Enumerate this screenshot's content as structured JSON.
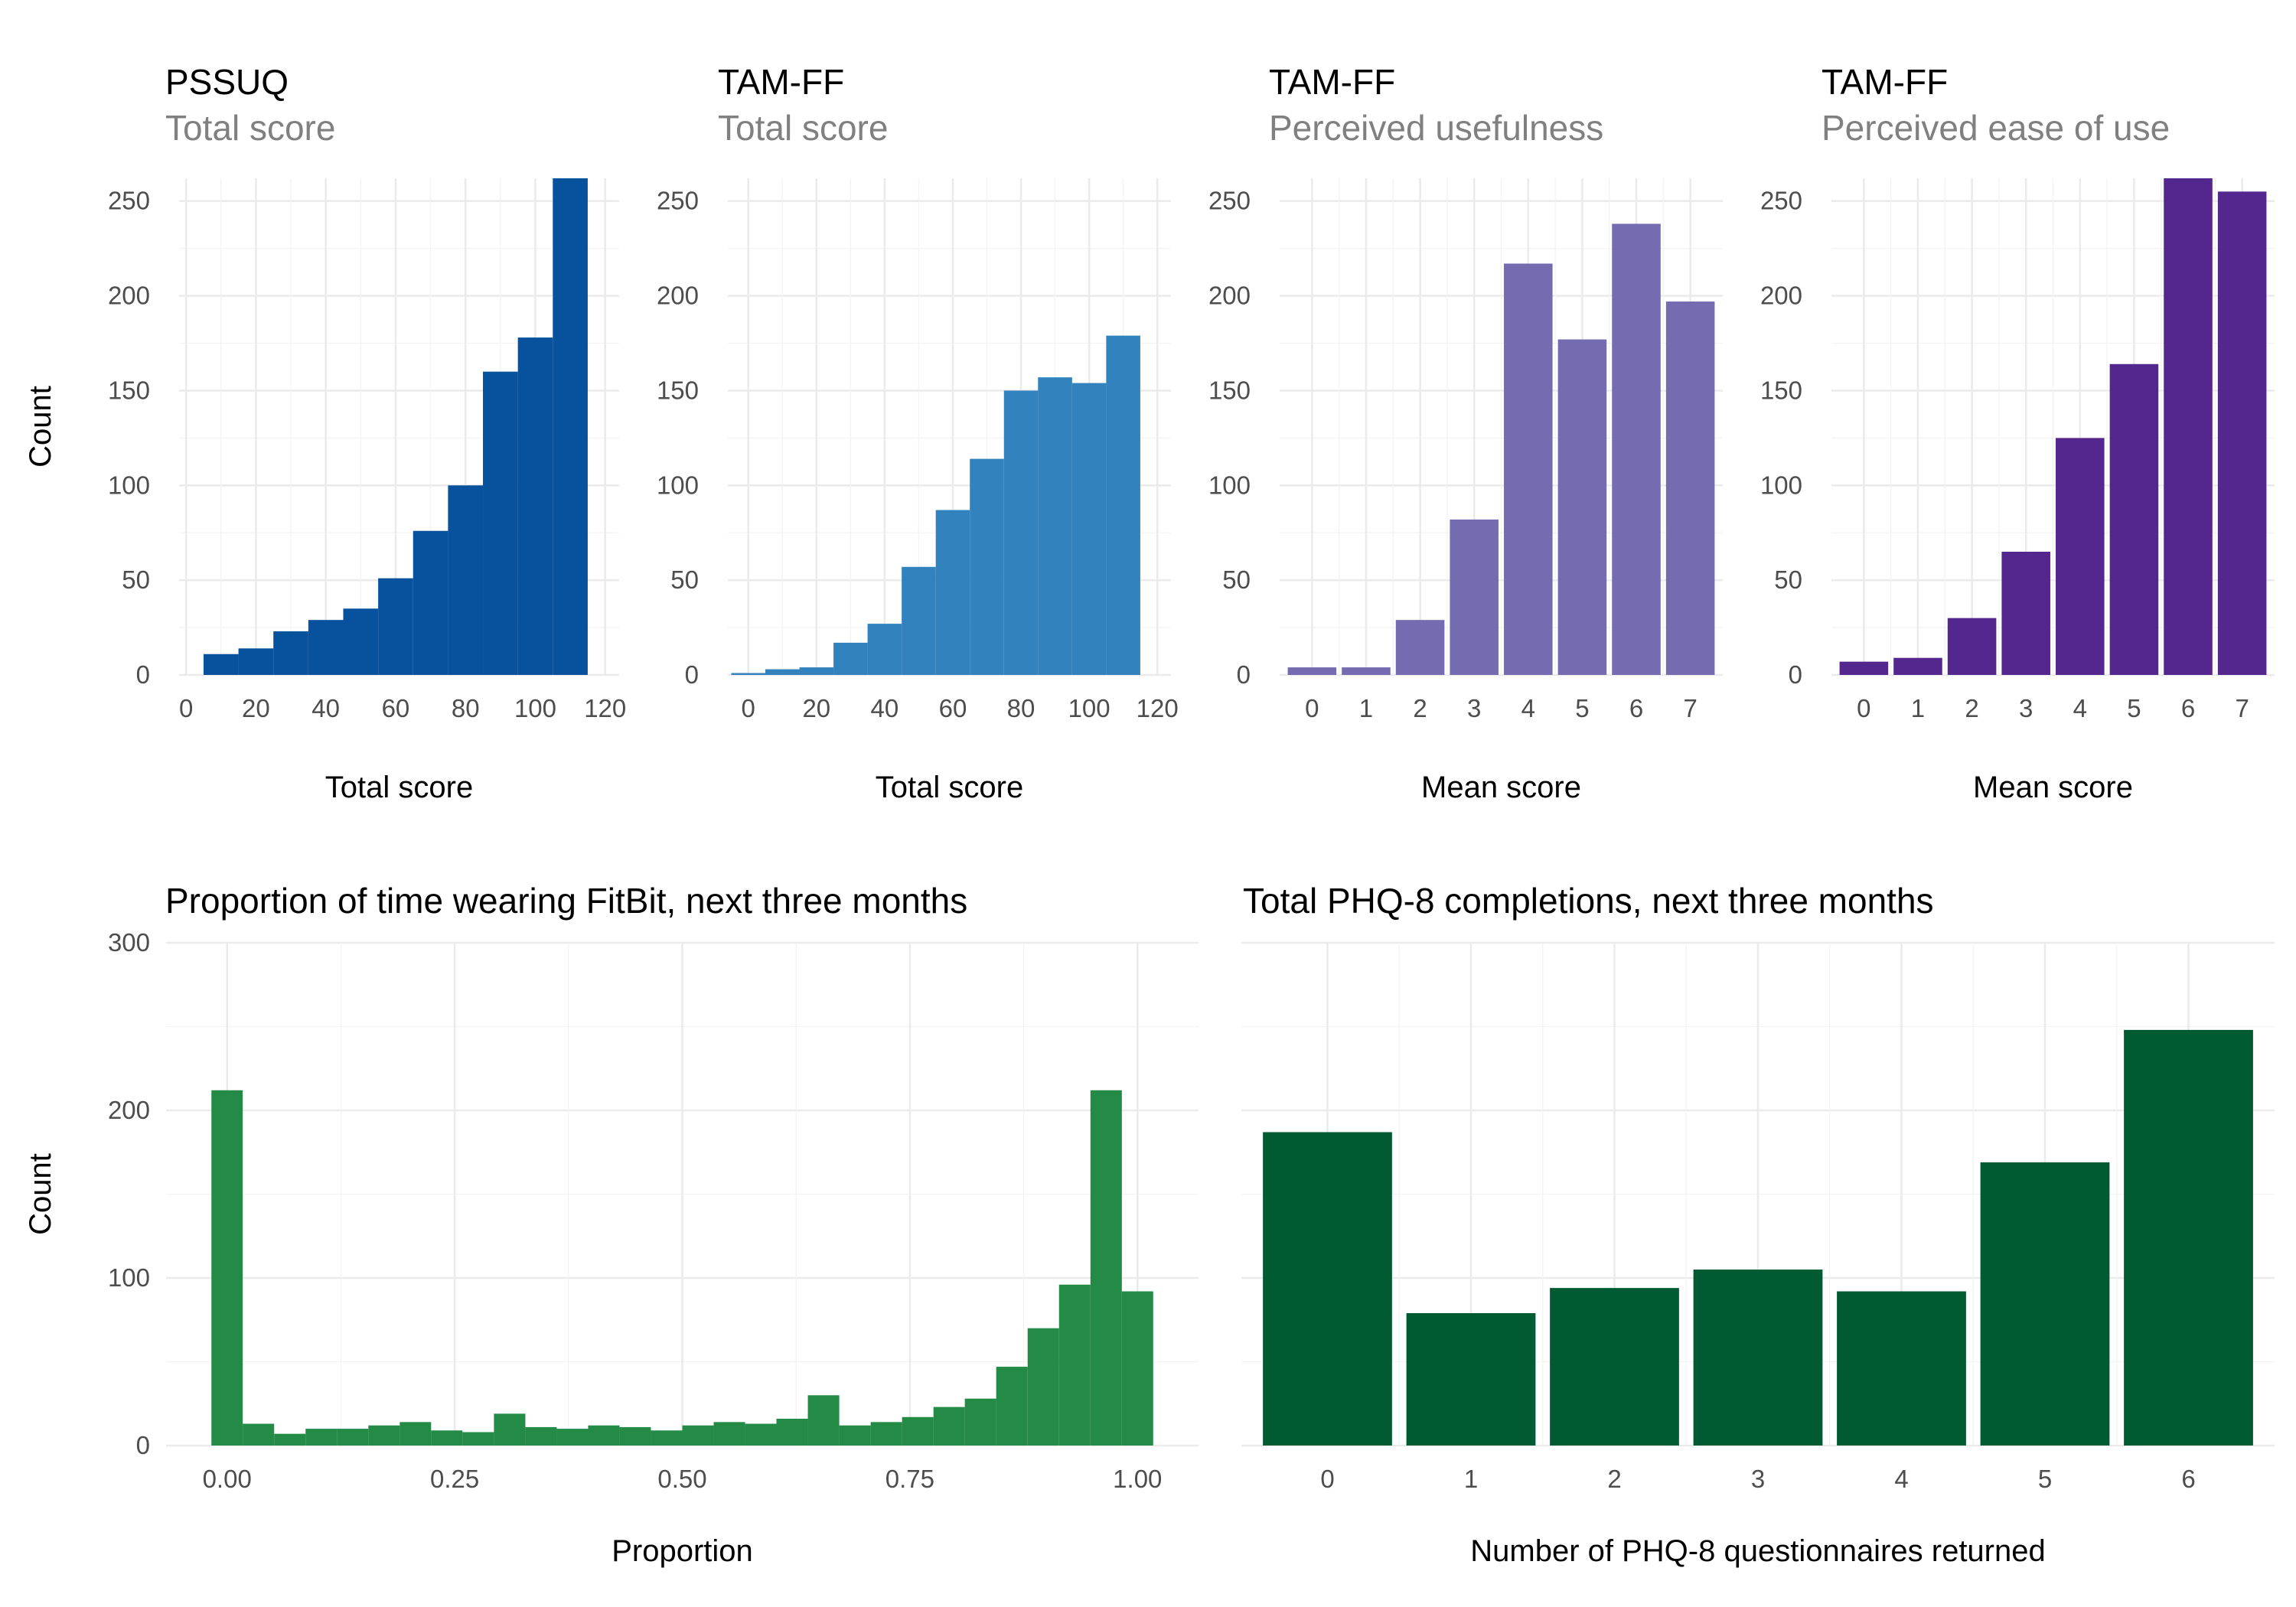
{
  "chart_data": [
    {
      "type": "bar",
      "subtype": "histogram",
      "title": "PSSUQ",
      "subtitle": "Total score",
      "xlabel": "Total score",
      "ylabel": "Count",
      "color": "#08519c",
      "grid": true,
      "xlim": [
        -2,
        124
      ],
      "ylim": [
        0,
        262
      ],
      "xticks": [
        0,
        20,
        40,
        60,
        80,
        100,
        120
      ],
      "yticks": [
        0,
        50,
        100,
        150,
        200,
        250
      ],
      "bin_width": 10,
      "bins": [
        {
          "x0": 5,
          "x1": 15,
          "count": 11
        },
        {
          "x0": 15,
          "x1": 25,
          "count": 14
        },
        {
          "x0": 25,
          "x1": 35,
          "count": 23
        },
        {
          "x0": 35,
          "x1": 45,
          "count": 29
        },
        {
          "x0": 45,
          "x1": 55,
          "count": 35
        },
        {
          "x0": 55,
          "x1": 65,
          "count": 51
        },
        {
          "x0": 65,
          "x1": 75,
          "count": 76
        },
        {
          "x0": 75,
          "x1": 85,
          "count": 100
        },
        {
          "x0": 85,
          "x1": 95,
          "count": 160
        },
        {
          "x0": 95,
          "x1": 105,
          "count": 178
        },
        {
          "x0": 105,
          "x1": 115,
          "count": 262
        }
      ]
    },
    {
      "type": "bar",
      "subtype": "histogram",
      "title": "TAM-FF",
      "subtitle": "Total score",
      "xlabel": "Total score",
      "ylabel": "",
      "color": "#3182bd",
      "grid": true,
      "xlim": [
        -6,
        124
      ],
      "ylim": [
        0,
        262
      ],
      "xticks": [
        0,
        20,
        40,
        60,
        80,
        100,
        120
      ],
      "yticks": [
        0,
        50,
        100,
        150,
        200,
        250
      ],
      "bin_width": 10,
      "bins": [
        {
          "x0": -5,
          "x1": 5,
          "count": 1
        },
        {
          "x0": 5,
          "x1": 15,
          "count": 3
        },
        {
          "x0": 15,
          "x1": 25,
          "count": 4
        },
        {
          "x0": 25,
          "x1": 35,
          "count": 17
        },
        {
          "x0": 35,
          "x1": 45,
          "count": 27
        },
        {
          "x0": 45,
          "x1": 55,
          "count": 57
        },
        {
          "x0": 55,
          "x1": 65,
          "count": 87
        },
        {
          "x0": 65,
          "x1": 75,
          "count": 114
        },
        {
          "x0": 75,
          "x1": 85,
          "count": 150
        },
        {
          "x0": 85,
          "x1": 95,
          "count": 157
        },
        {
          "x0": 95,
          "x1": 105,
          "count": 154
        },
        {
          "x0": 105,
          "x1": 115,
          "count": 179
        }
      ]
    },
    {
      "type": "bar",
      "title": "TAM-FF",
      "subtitle": "Perceived usefulness",
      "xlabel": "Mean score",
      "ylabel": "",
      "color": "#756bb1",
      "grid": true,
      "xlim": [
        -0.6,
        7.6
      ],
      "ylim": [
        0,
        262
      ],
      "categories": [
        "0",
        "1",
        "2",
        "3",
        "4",
        "5",
        "6",
        "7"
      ],
      "values": [
        4,
        4,
        29,
        82,
        217,
        177,
        238,
        197
      ],
      "yticks": [
        0,
        50,
        100,
        150,
        200,
        250
      ]
    },
    {
      "type": "bar",
      "title": "TAM-FF",
      "subtitle": "Perceived ease of use",
      "xlabel": "Mean score",
      "ylabel": "",
      "color": "#54278f",
      "grid": true,
      "xlim": [
        -0.6,
        7.6
      ],
      "ylim": [
        0,
        262
      ],
      "categories": [
        "0",
        "1",
        "2",
        "3",
        "4",
        "5",
        "6",
        "7"
      ],
      "values": [
        7,
        9,
        30,
        65,
        125,
        164,
        262,
        255
      ],
      "yticks": [
        0,
        50,
        100,
        150,
        200,
        250
      ]
    },
    {
      "type": "bar",
      "subtype": "histogram",
      "title": "Proportion of time wearing FitBit, next three months",
      "subtitle": "",
      "xlabel": "Proportion",
      "ylabel": "Count",
      "color": "#238b45",
      "grid": true,
      "xlim": [
        -0.067,
        1.067
      ],
      "ylim": [
        0,
        300
      ],
      "xticks": [
        0,
        0.25,
        0.5,
        0.75,
        1
      ],
      "xtick_labels": [
        "0.00",
        "0.25",
        "0.50",
        "0.75",
        "1.00"
      ],
      "yticks": [
        0,
        100,
        200,
        300
      ],
      "bin_width": 0.0345,
      "bins": [
        {
          "x0": -0.0172,
          "x1": 0.0172,
          "count": 212
        },
        {
          "x0": 0.0172,
          "x1": 0.0517,
          "count": 13
        },
        {
          "x0": 0.0517,
          "x1": 0.0862,
          "count": 7
        },
        {
          "x0": 0.0862,
          "x1": 0.1207,
          "count": 10
        },
        {
          "x0": 0.1207,
          "x1": 0.1552,
          "count": 10
        },
        {
          "x0": 0.1552,
          "x1": 0.1897,
          "count": 12
        },
        {
          "x0": 0.1897,
          "x1": 0.2241,
          "count": 14
        },
        {
          "x0": 0.2241,
          "x1": 0.2586,
          "count": 9
        },
        {
          "x0": 0.2586,
          "x1": 0.2931,
          "count": 8
        },
        {
          "x0": 0.2931,
          "x1": 0.3276,
          "count": 19
        },
        {
          "x0": 0.3276,
          "x1": 0.3621,
          "count": 11
        },
        {
          "x0": 0.3621,
          "x1": 0.3966,
          "count": 10
        },
        {
          "x0": 0.3966,
          "x1": 0.431,
          "count": 12
        },
        {
          "x0": 0.431,
          "x1": 0.4655,
          "count": 11
        },
        {
          "x0": 0.4655,
          "x1": 0.5,
          "count": 9
        },
        {
          "x0": 0.5,
          "x1": 0.5345,
          "count": 12
        },
        {
          "x0": 0.5345,
          "x1": 0.569,
          "count": 14
        },
        {
          "x0": 0.569,
          "x1": 0.6034,
          "count": 13
        },
        {
          "x0": 0.6034,
          "x1": 0.6379,
          "count": 16
        },
        {
          "x0": 0.6379,
          "x1": 0.6724,
          "count": 30
        },
        {
          "x0": 0.6724,
          "x1": 0.7069,
          "count": 12
        },
        {
          "x0": 0.7069,
          "x1": 0.7414,
          "count": 14
        },
        {
          "x0": 0.7414,
          "x1": 0.7759,
          "count": 17
        },
        {
          "x0": 0.7759,
          "x1": 0.8103,
          "count": 23
        },
        {
          "x0": 0.8103,
          "x1": 0.8448,
          "count": 28
        },
        {
          "x0": 0.8448,
          "x1": 0.8793,
          "count": 47
        },
        {
          "x0": 0.8793,
          "x1": 0.9138,
          "count": 70
        },
        {
          "x0": 0.9138,
          "x1": 0.9483,
          "count": 96
        },
        {
          "x0": 0.9483,
          "x1": 0.9828,
          "count": 212
        },
        {
          "x0": 0.9828,
          "x1": 1.0172,
          "count": 92
        }
      ]
    },
    {
      "type": "bar",
      "title": "Total PHQ-8 completions, next three months",
      "subtitle": "",
      "xlabel": "Number of PHQ-8 questionnaires returned",
      "ylabel": "",
      "color": "#005a32",
      "grid": true,
      "xlim": [
        -0.6,
        6.6
      ],
      "ylim": [
        0,
        300
      ],
      "categories": [
        "0",
        "1",
        "2",
        "3",
        "4",
        "5",
        "6"
      ],
      "values": [
        187,
        79,
        94,
        105,
        92,
        169,
        248
      ],
      "yticks": [],
      "grid_y": [
        0,
        100,
        200,
        300
      ]
    }
  ]
}
